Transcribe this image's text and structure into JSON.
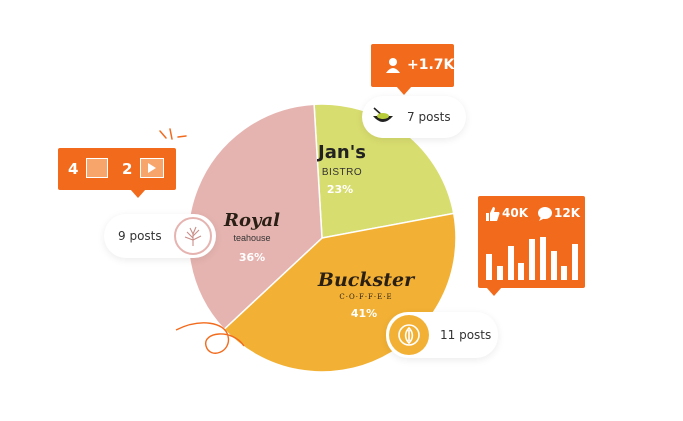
{
  "chart_data": {
    "type": "pie",
    "slices": [
      {
        "label": "Jan's",
        "sublabel": "BISTRO",
        "percent": "23%",
        "value": 23,
        "color": "#d8dd6f",
        "posts": "7 posts"
      },
      {
        "label": "Buckster",
        "sublabel": "C·O·F·F·E·E",
        "percent": "41%",
        "value": 41,
        "color": "#f2b134",
        "posts": "11 posts"
      },
      {
        "label": "Royal",
        "sublabel": "teahouse",
        "percent": "36%",
        "value": 36,
        "color": "#e6b4b0",
        "posts": "9 posts"
      }
    ]
  },
  "followers_box": {
    "count": "+1.7K",
    "icon": "person-icon"
  },
  "media_box": {
    "images": "4",
    "videos": "2",
    "image_icon": "image-icon",
    "video_icon": "play-icon"
  },
  "engagement_box": {
    "likes": "40K",
    "comments": "12K",
    "like_icon": "thumbs-up-icon",
    "comment_icon": "speech-bubble-icon",
    "bar_levels": [
      0.55,
      0.3,
      0.7,
      0.35,
      0.85,
      0.9,
      0.6,
      0.3,
      0.75
    ]
  },
  "colors": {
    "accent": "#f26b1d",
    "white": "#ffffff"
  }
}
